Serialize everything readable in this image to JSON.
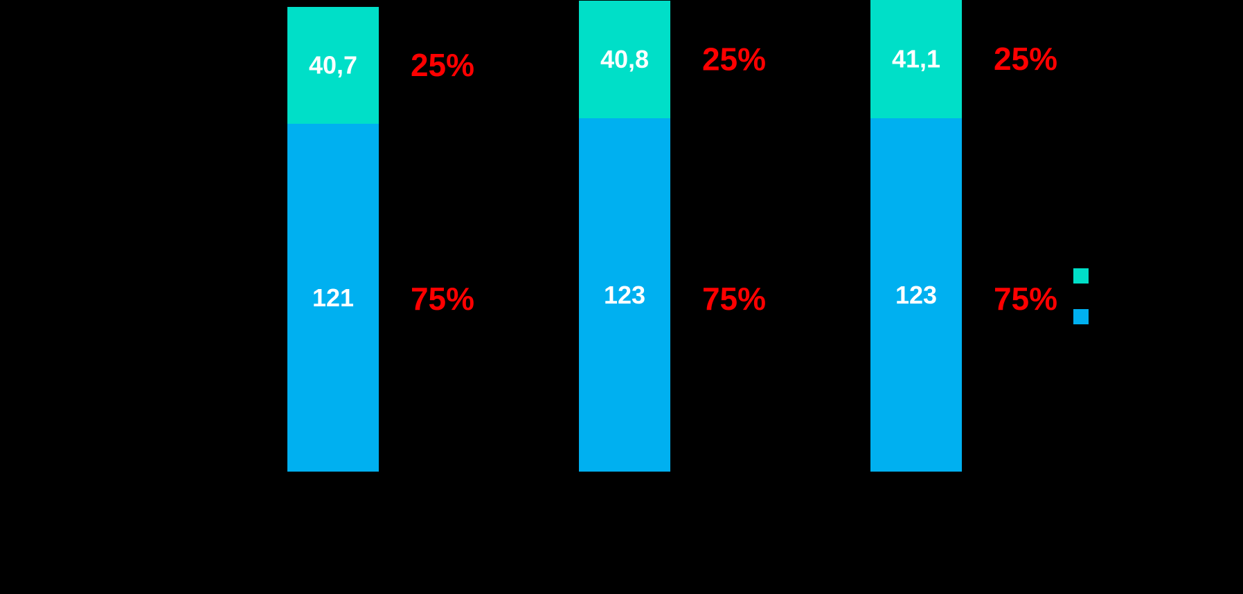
{
  "chart_data": {
    "type": "bar",
    "stacked": true,
    "categories": [
      "",
      "",
      ""
    ],
    "series": [
      {
        "values": [
          121,
          123,
          123
        ],
        "color": "#00b0f0",
        "share_labels": [
          "75%",
          "75%",
          "75%"
        ]
      },
      {
        "values": [
          40.7,
          40.8,
          41.1
        ],
        "color": "#00dfc8",
        "share_labels": [
          "25%",
          "25%",
          "25%"
        ]
      }
    ],
    "value_labels": [
      [
        "121",
        "123",
        "123"
      ],
      [
        "40,7",
        "40,8",
        "41,1"
      ]
    ],
    "share_label_color": "#ff0000",
    "ylim": [
      0,
      164
    ],
    "background": "#000000",
    "legend": {
      "position": "right",
      "entries": [
        {
          "color": "#00dfc8"
        },
        {
          "color": "#00b0f0"
        }
      ]
    }
  }
}
